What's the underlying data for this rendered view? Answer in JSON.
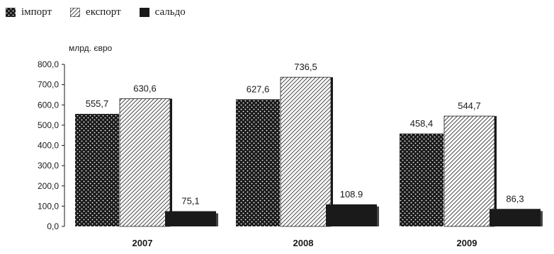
{
  "chart_data": {
    "type": "bar",
    "ylabel": "млрд. євро",
    "ylim": [
      0,
      800
    ],
    "yticks": [
      "0,0",
      "100,0",
      "200,0",
      "300,0",
      "400,0",
      "500,0",
      "600,0",
      "700,0",
      "800,0"
    ],
    "categories": [
      "2007",
      "2008",
      "2009"
    ],
    "series": [
      {
        "name": "імпорт",
        "values": [
          555.7,
          627.6,
          458.4
        ],
        "labels": [
          "555,7",
          "627,6",
          "458,4"
        ],
        "pattern": "dots"
      },
      {
        "name": "експорт",
        "values": [
          630.6,
          736.5,
          544.7
        ],
        "labels": [
          "630,6",
          "736,5",
          "544,7"
        ],
        "pattern": "hatch"
      },
      {
        "name": "сальдо",
        "values": [
          75.1,
          108.9,
          86.3
        ],
        "labels": [
          "75,1",
          "108.9",
          "86,3"
        ],
        "pattern": "solid"
      }
    ],
    "grid": false,
    "legend_position": "top-left",
    "colors": {
      "bar": "#1a1a1a",
      "background": "#ffffff"
    }
  }
}
